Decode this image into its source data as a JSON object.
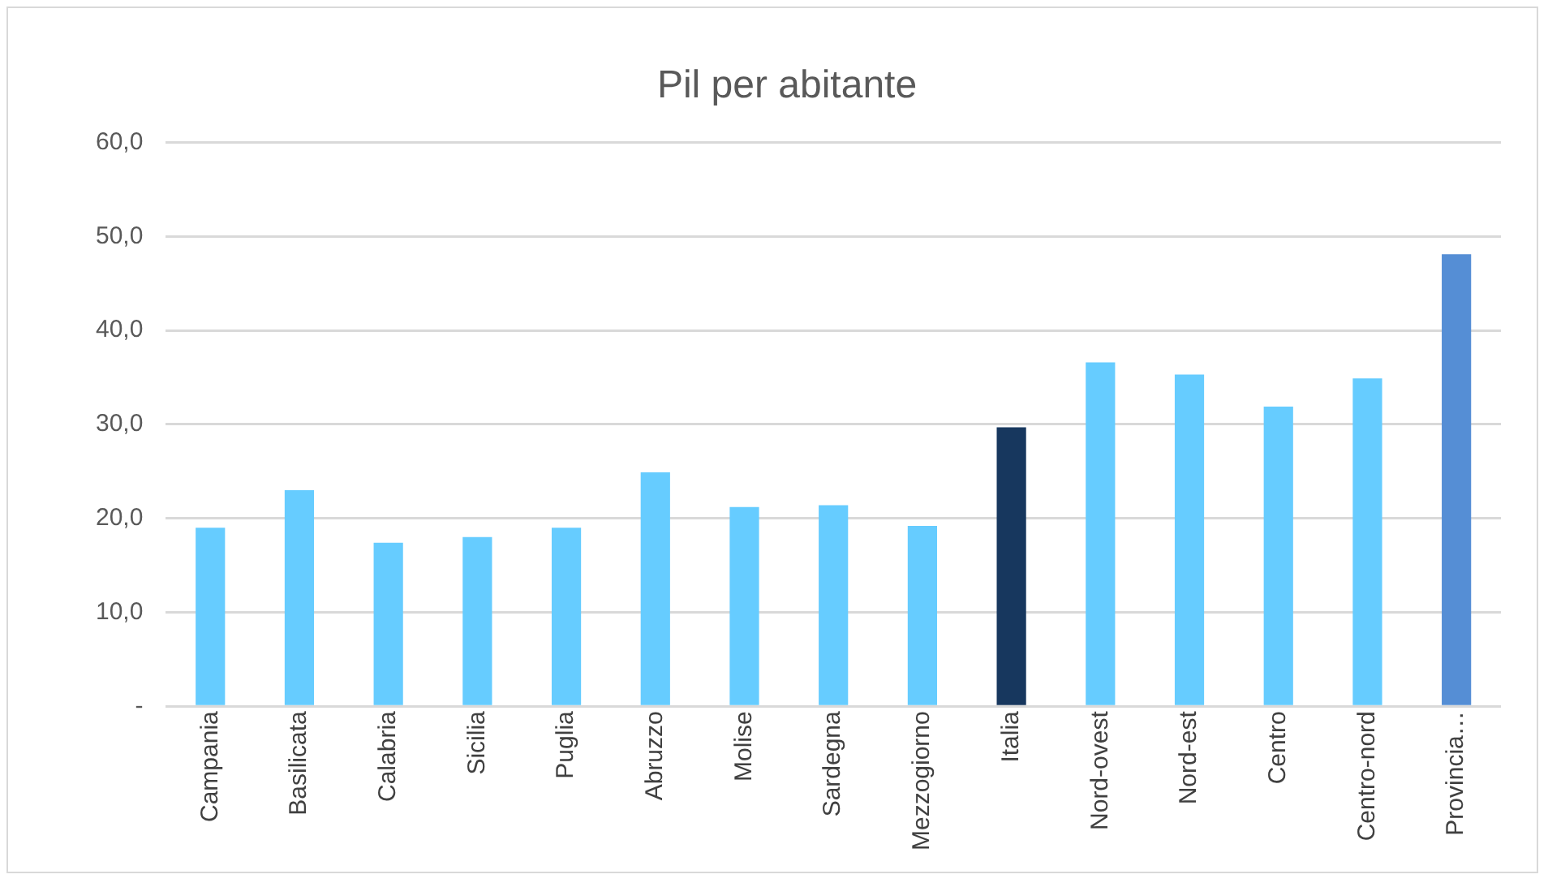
{
  "chart_data": {
    "type": "bar",
    "title": "Pil per abitante",
    "categories": [
      "Campania",
      "Basilicata",
      "Calabria",
      "Sicilia",
      "Puglia",
      "Abruzzo",
      "Molise",
      "Sardegna",
      "Mezzogiorno",
      "Italia",
      "Nord-ovest",
      "Nord-est",
      "Centro",
      "Centro-nord",
      "Provincia…"
    ],
    "values": [
      19.0,
      23.0,
      17.4,
      18.0,
      19.0,
      24.9,
      21.2,
      21.4,
      19.2,
      29.7,
      36.6,
      35.3,
      31.9,
      34.9,
      48.1
    ],
    "colors": [
      "#66ccff",
      "#66ccff",
      "#66ccff",
      "#66ccff",
      "#66ccff",
      "#66ccff",
      "#66ccff",
      "#66ccff",
      "#66ccff",
      "#17375e",
      "#66ccff",
      "#66ccff",
      "#66ccff",
      "#66ccff",
      "#558ed5"
    ],
    "ylim": [
      0,
      60
    ],
    "yticks": [
      {
        "value": 0,
        "label": "-"
      },
      {
        "value": 10,
        "label": "10,0"
      },
      {
        "value": 20,
        "label": "20,0"
      },
      {
        "value": 30,
        "label": "30,0"
      },
      {
        "value": 40,
        "label": "40,0"
      },
      {
        "value": 50,
        "label": "50,0"
      },
      {
        "value": 60,
        "label": "60,0"
      }
    ],
    "grid": "y",
    "legend": false
  }
}
